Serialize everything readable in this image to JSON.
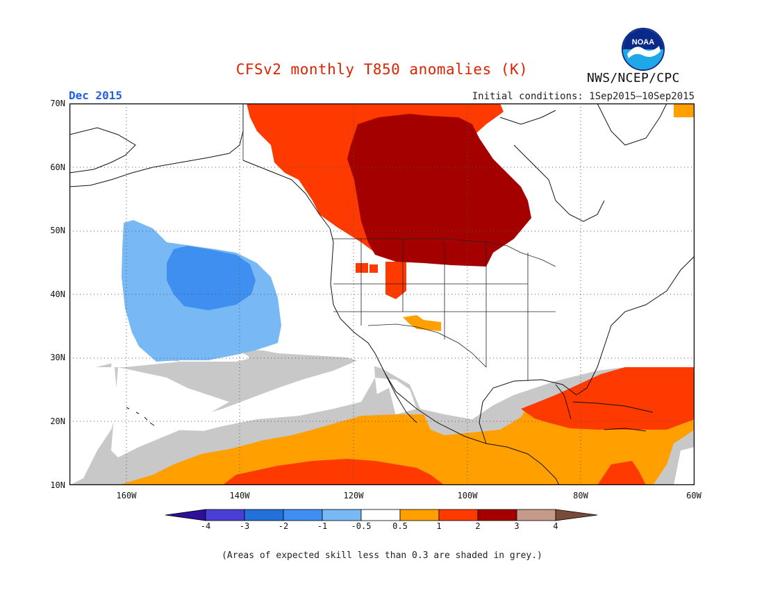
{
  "title": "CFSv2 monthly T850 anomalies (K)",
  "subtitle": "Dec 2015",
  "initial_conditions": "Initial conditions: 1Sep2015—10Sep2015",
  "org": "NWS/NCEP/CPC",
  "logo_text": "NOAA",
  "footnote": "(Areas of expected skill less than 0.3 are shaded in grey.)",
  "lat_labels": [
    "70N",
    "60N",
    "50N",
    "40N",
    "30N",
    "20N",
    "10N"
  ],
  "lon_labels": [
    "160W",
    "140W",
    "120W",
    "100W",
    "80W",
    "60W"
  ],
  "colorbar": {
    "labels": [
      "-4",
      "-3",
      "-2",
      "-1",
      "-0.5",
      "0.5",
      "1",
      "2",
      "3",
      "4"
    ],
    "colors": [
      "#2f0f9a",
      "#4a3fd4",
      "#2370d9",
      "#3f8ff0",
      "#78b8f5",
      "#ffffff",
      "#ffa000",
      "#ff3a00",
      "#a50000",
      "#c69a8a",
      "#7a4a3a"
    ]
  },
  "colors": {
    "skill_grey": "#c8c8c8",
    "orange": "#ffa000",
    "red_orange": "#ff3a00",
    "dark_red": "#a50000",
    "light_blue": "#78b8f5",
    "medium_blue": "#3f8ff0"
  }
}
